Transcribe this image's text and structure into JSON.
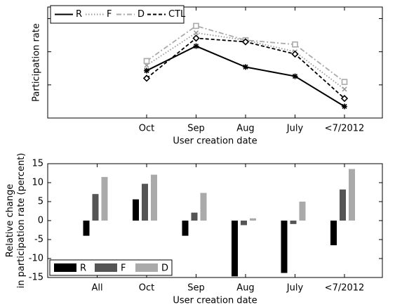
{
  "chart_data": [
    {
      "type": "line",
      "ylabel": "Participation rate",
      "xlabel": "User creation date",
      "categories": [
        null,
        "Oct",
        "Sep",
        "Aug",
        "July",
        "<7/2012"
      ],
      "ylim": [
        0,
        3.35
      ],
      "yticks": [
        0,
        1,
        2,
        3
      ],
      "ytick_labels": false,
      "legend": "upper left",
      "series": [
        {
          "name": "R",
          "color": "#000000",
          "linestyle": "solid",
          "marker": "asterisk",
          "values": [
            null,
            1.43,
            2.17,
            1.54,
            1.26,
            0.35
          ]
        },
        {
          "name": "F",
          "color": "#999999",
          "linestyle": "dotted",
          "marker": "x",
          "values": [
            null,
            1.59,
            2.57,
            2.35,
            2.0,
            0.87
          ]
        },
        {
          "name": "D",
          "color": "#aaaaaa",
          "linestyle": "dashdot",
          "marker": "square",
          "values": [
            null,
            1.72,
            2.78,
            2.35,
            2.22,
            1.09
          ]
        },
        {
          "name": "CTL",
          "color": "#000000",
          "linestyle": "dashed",
          "marker": "diamond",
          "values": [
            null,
            1.2,
            2.41,
            2.3,
            1.93,
            0.59
          ]
        }
      ]
    },
    {
      "type": "bar",
      "ylabel": [
        "Relative change",
        "in participation rate (percent)"
      ],
      "xlabel": "User creation date",
      "categories": [
        "All",
        "Oct",
        "Sep",
        "Aug",
        "July",
        "<7/2012"
      ],
      "ylim": [
        -15,
        15
      ],
      "yticks": [
        -15,
        -10,
        -5,
        0,
        5,
        10,
        15
      ],
      "legend": "lower left",
      "series": [
        {
          "name": "R",
          "color": "#000000",
          "values": [
            -4,
            5.6,
            -4,
            -14.7,
            -13.8,
            -6.5
          ]
        },
        {
          "name": "F",
          "color": "#555555",
          "values": [
            7,
            9.7,
            2.1,
            -1.2,
            -0.9,
            8.2
          ]
        },
        {
          "name": "D",
          "color": "#aaaaaa",
          "values": [
            11.5,
            12.1,
            7.3,
            0.6,
            5.0,
            13.6
          ]
        }
      ]
    }
  ]
}
